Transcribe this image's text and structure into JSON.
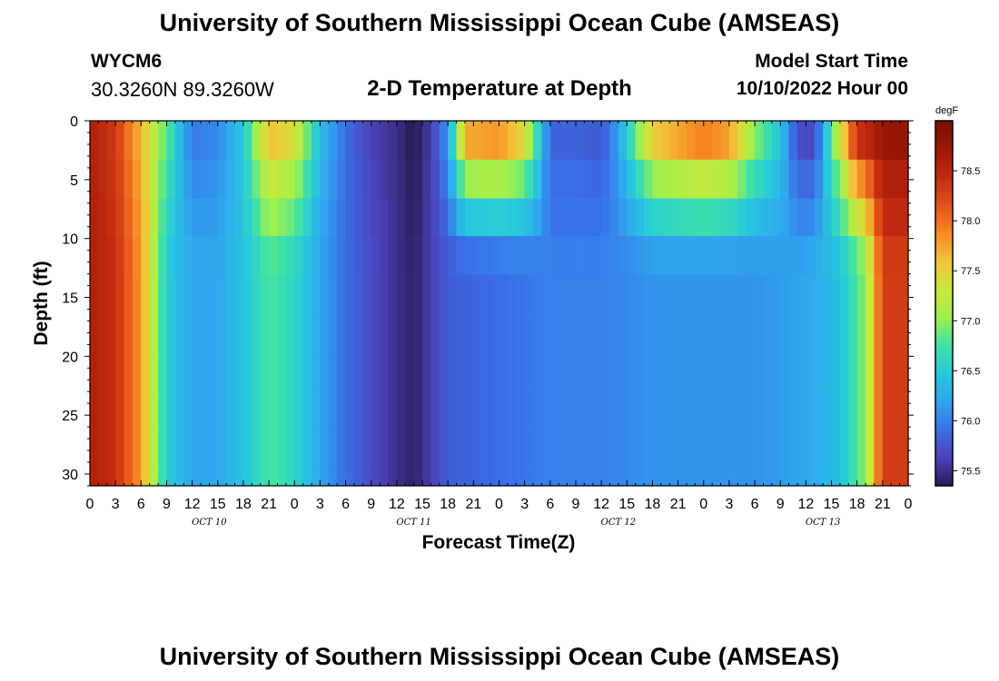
{
  "header": {
    "title": "University of Southern Mississippi Ocean Cube (AMSEAS)",
    "station": "WYCM6",
    "coords": "30.3260N  89.3260W",
    "subtitle": "2-D Temperature at Depth",
    "model_start_label": "Model Start Time",
    "model_start_value": "10/10/2022 Hour 00"
  },
  "footer": {
    "title": "University of Southern Mississippi Ocean Cube (AMSEAS)"
  },
  "chart_data": {
    "type": "heatmap",
    "xlabel": "Forecast Time(Z)",
    "ylabel": "Depth (ft)",
    "colorbar_label": "degF",
    "x_ticks": [
      "0",
      "3",
      "6",
      "9",
      "12",
      "15",
      "18",
      "21",
      "0",
      "3",
      "6",
      "9",
      "12",
      "15",
      "18",
      "21",
      "0",
      "3",
      "6",
      "9",
      "12",
      "15",
      "18",
      "21",
      "0",
      "3",
      "6",
      "9",
      "12",
      "15",
      "18",
      "21",
      "0"
    ],
    "date_labels": [
      "OCT 10",
      "OCT 11",
      "OCT 12",
      "OCT 13"
    ],
    "xlim_hours": [
      0,
      96
    ],
    "y_ticks": [
      0,
      5,
      10,
      15,
      20,
      25,
      30
    ],
    "ylim": [
      0,
      31
    ],
    "y_inverted": true,
    "colorbar_ticks": [
      75.5,
      76.0,
      76.5,
      77.0,
      77.5,
      78.0,
      78.5
    ],
    "colorbar_range": [
      75.35,
      79.0
    ],
    "depth_levels_ft": [
      0,
      3.3,
      6.6,
      9.8,
      13.1,
      16.4,
      19.7,
      23.0,
      26.2,
      29.5,
      31
    ],
    "surface_temp_by_hour": [
      [
        0,
        78.6
      ],
      [
        3,
        78.3
      ],
      [
        6,
        77.6
      ],
      [
        9,
        76.9
      ],
      [
        12,
        75.9
      ],
      [
        15,
        76.0
      ],
      [
        18,
        76.5
      ],
      [
        21,
        77.8
      ],
      [
        24,
        77.6
      ],
      [
        27,
        76.4
      ],
      [
        30,
        75.9
      ],
      [
        33,
        75.6
      ],
      [
        36,
        75.5
      ],
      [
        38,
        75.3
      ],
      [
        40,
        75.6
      ],
      [
        42,
        76.2
      ],
      [
        44,
        78.2
      ],
      [
        48,
        78.3
      ],
      [
        51,
        77.8
      ],
      [
        54,
        75.8
      ],
      [
        57,
        75.8
      ],
      [
        60,
        75.7
      ],
      [
        62,
        76.2
      ],
      [
        66,
        77.9
      ],
      [
        72,
        78.4
      ],
      [
        75,
        78.2
      ],
      [
        78,
        77.2
      ],
      [
        81,
        76.5
      ],
      [
        83,
        75.6
      ],
      [
        85,
        75.5
      ],
      [
        87,
        76.9
      ],
      [
        90,
        78.8
      ],
      [
        96,
        78.9
      ]
    ],
    "bottom_temp_by_hour": [
      [
        0,
        78.6
      ],
      [
        3,
        78.4
      ],
      [
        6,
        77.8
      ],
      [
        9,
        76.5
      ],
      [
        12,
        76.2
      ],
      [
        15,
        76.2
      ],
      [
        18,
        76.4
      ],
      [
        21,
        76.8
      ],
      [
        24,
        76.6
      ],
      [
        27,
        76.2
      ],
      [
        30,
        75.9
      ],
      [
        33,
        75.7
      ],
      [
        36,
        75.5
      ],
      [
        38,
        75.4
      ],
      [
        40,
        75.6
      ],
      [
        42,
        75.8
      ],
      [
        48,
        75.9
      ],
      [
        54,
        76.0
      ],
      [
        60,
        76.0
      ],
      [
        66,
        76.1
      ],
      [
        72,
        76.1
      ],
      [
        78,
        76.1
      ],
      [
        84,
        76.2
      ],
      [
        88,
        76.4
      ],
      [
        91,
        77.0
      ],
      [
        93,
        78.3
      ],
      [
        96,
        78.3
      ]
    ],
    "colorbar_colors": [
      "#2a1b56",
      "#4b43b8",
      "#3a6fe8",
      "#2fa6ee",
      "#27c9dc",
      "#3fe2a6",
      "#9ef04e",
      "#c9e83b",
      "#f2c33a",
      "#f78a24",
      "#e4501b",
      "#c22a10",
      "#9c1807",
      "#7a0d02"
    ]
  }
}
